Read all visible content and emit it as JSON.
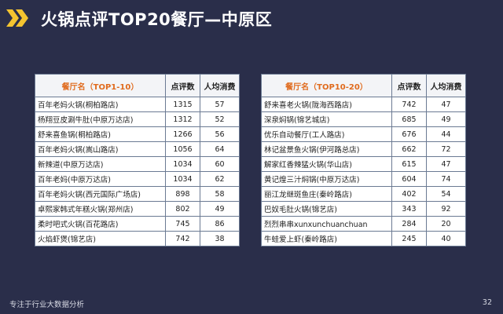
{
  "header": {
    "title": "火锅点评TOP20餐厅—中原区"
  },
  "colors": {
    "background": "#2a2e4a",
    "logo_yellow": "#f4c430",
    "header_orange": "#e06b1e"
  },
  "table_left": {
    "columns": [
      "餐厅名（TOP1-10）",
      "点评数",
      "人均消费"
    ],
    "rows": [
      [
        "百年老妈火锅(桐柏路店)",
        "1315",
        "57"
      ],
      [
        "杨翔豆皮涮牛肚(中原万达店)",
        "1312",
        "52"
      ],
      [
        "舒来喜鱼锅(桐柏路店)",
        "1266",
        "56"
      ],
      [
        "百年老妈火锅(嵩山路店)",
        "1056",
        "64"
      ],
      [
        "新辣道(中原万达店)",
        "1034",
        "60"
      ],
      [
        "百年老妈(中原万达店)",
        "1034",
        "62"
      ],
      [
        "百年老妈火锅(西元国际广场店)",
        "898",
        "58"
      ],
      [
        "卓熙家韩式年糕火锅(郑州店)",
        "802",
        "49"
      ],
      [
        "柔时吧式火锅(百花路店)",
        "745",
        "86"
      ],
      [
        "火焰虾煲(锦艺店)",
        "742",
        "38"
      ]
    ]
  },
  "table_right": {
    "columns": [
      "餐厅名（TOP10-20）",
      "点评数",
      "人均消费"
    ],
    "rows": [
      [
        "舒来喜老火锅(陇海西路店)",
        "742",
        "47"
      ],
      [
        "深泉焖锅(锦艺城店)",
        "685",
        "49"
      ],
      [
        "优乐自动餐厅(工人路店)",
        "676",
        "44"
      ],
      [
        "林记盆景鱼火锅(伊河路总店)",
        "662",
        "72"
      ],
      [
        "解家红香辣猛火锅(华山店)",
        "615",
        "47"
      ],
      [
        "黄记煌三汁焖锅(中原万达店)",
        "604",
        "74"
      ],
      [
        "丽江龙继斑鱼庄(秦岭路店)",
        "402",
        "54"
      ],
      [
        "巴奴毛肚火锅(锦艺店)",
        "343",
        "92"
      ],
      [
        "烈烈串串xunxunchuanchuan",
        "284",
        "20"
      ],
      [
        "牛蛙爱上虾(秦岭路店)",
        "245",
        "40"
      ]
    ]
  },
  "footer": {
    "tagline": "专注于行业大数据分析",
    "page_number": "32"
  }
}
